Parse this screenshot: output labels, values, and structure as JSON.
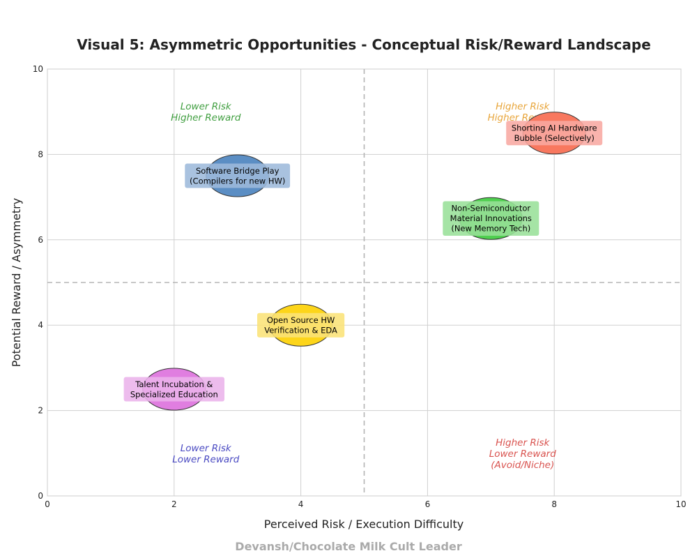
{
  "chart_data": {
    "type": "scatter",
    "title": "Visual 5: Asymmetric Opportunities - Conceptual Risk/Reward Landscape",
    "xlabel": "Perceived Risk / Execution Difficulty",
    "ylabel": "Potential Reward / Asymmetry",
    "xlim": [
      0,
      10
    ],
    "ylim": [
      0,
      10
    ],
    "xticks": [
      0,
      2,
      4,
      6,
      8,
      10
    ],
    "yticks": [
      0,
      2,
      4,
      6,
      8,
      10
    ],
    "grid": true,
    "divider_x": 5,
    "divider_y": 5,
    "points": [
      {
        "label": [
          "Software Bridge Play",
          "(Compilers for new HW)"
        ],
        "x": 3,
        "y": 7.5,
        "color": "#5b8ec4",
        "label_bg": "#9dbadb"
      },
      {
        "label": [
          "Shorting AI Hardware",
          "Bubble (Selectively)"
        ],
        "x": 8,
        "y": 8.5,
        "color": "#f8785f",
        "label_bg": "#f8a9a2"
      },
      {
        "label": [
          "Non-Semiconductor",
          "Material Innovations",
          "(New Memory Tech)"
        ],
        "x": 7,
        "y": 6.5,
        "color": "#4fcf4f",
        "label_bg": "#98e098"
      },
      {
        "label": [
          "Open Source HW",
          "Verification & EDA"
        ],
        "x": 4,
        "y": 4,
        "color": "#fdd51a",
        "label_bg": "#fbe277"
      },
      {
        "label": [
          "Talent Incubation &",
          "Specialized Education"
        ],
        "x": 2,
        "y": 2.5,
        "color": "#e07ee0",
        "label_bg": "#ebb3eb"
      }
    ],
    "quadrant_labels": [
      {
        "lines": [
          "Lower Risk",
          "Higher Reward"
        ],
        "x": 2.5,
        "y": 9,
        "color": "#3f9e3f"
      },
      {
        "lines": [
          "Higher Risk",
          "Higher Reward"
        ],
        "x": 7.5,
        "y": 9,
        "color": "#e8a53a"
      },
      {
        "lines": [
          "Lower Risk",
          "Lower Reward"
        ],
        "x": 2.5,
        "y": 1,
        "color": "#4a4ac2"
      },
      {
        "lines": [
          "Higher Risk",
          "Lower Reward",
          "(Avoid/Niche)"
        ],
        "x": 7.5,
        "y": 1,
        "color": "#d9534f"
      }
    ],
    "watermark": "Devansh/Chocolate Milk Cult Leader"
  }
}
